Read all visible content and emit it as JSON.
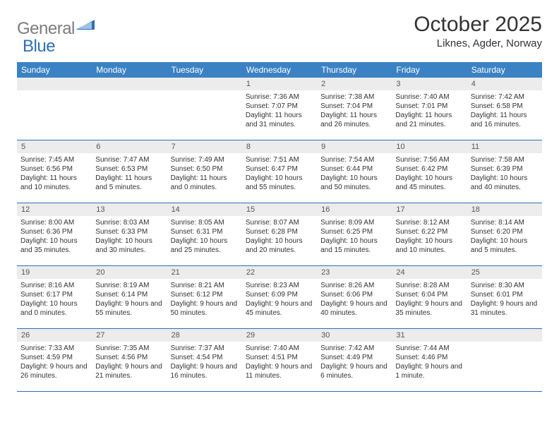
{
  "brand": {
    "part1": "General",
    "part2": "Blue"
  },
  "title": {
    "month": "October 2025",
    "location": "Liknes, Agder, Norway"
  },
  "colors": {
    "header_bg": "#3b82c4",
    "header_text": "#ffffff",
    "daynum_bg": "#ececec",
    "rule": "#2f6fb3",
    "brand_gray": "#7c7c7c",
    "brand_blue": "#2f6fb3"
  },
  "day_names": [
    "Sunday",
    "Monday",
    "Tuesday",
    "Wednesday",
    "Thursday",
    "Friday",
    "Saturday"
  ],
  "weeks": [
    [
      null,
      null,
      null,
      {
        "n": "1",
        "sr": "Sunrise: 7:36 AM",
        "ss": "Sunset: 7:07 PM",
        "dl": "Daylight: 11 hours and 31 minutes."
      },
      {
        "n": "2",
        "sr": "Sunrise: 7:38 AM",
        "ss": "Sunset: 7:04 PM",
        "dl": "Daylight: 11 hours and 26 minutes."
      },
      {
        "n": "3",
        "sr": "Sunrise: 7:40 AM",
        "ss": "Sunset: 7:01 PM",
        "dl": "Daylight: 11 hours and 21 minutes."
      },
      {
        "n": "4",
        "sr": "Sunrise: 7:42 AM",
        "ss": "Sunset: 6:58 PM",
        "dl": "Daylight: 11 hours and 16 minutes."
      }
    ],
    [
      {
        "n": "5",
        "sr": "Sunrise: 7:45 AM",
        "ss": "Sunset: 6:56 PM",
        "dl": "Daylight: 11 hours and 10 minutes."
      },
      {
        "n": "6",
        "sr": "Sunrise: 7:47 AM",
        "ss": "Sunset: 6:53 PM",
        "dl": "Daylight: 11 hours and 5 minutes."
      },
      {
        "n": "7",
        "sr": "Sunrise: 7:49 AM",
        "ss": "Sunset: 6:50 PM",
        "dl": "Daylight: 11 hours and 0 minutes."
      },
      {
        "n": "8",
        "sr": "Sunrise: 7:51 AM",
        "ss": "Sunset: 6:47 PM",
        "dl": "Daylight: 10 hours and 55 minutes."
      },
      {
        "n": "9",
        "sr": "Sunrise: 7:54 AM",
        "ss": "Sunset: 6:44 PM",
        "dl": "Daylight: 10 hours and 50 minutes."
      },
      {
        "n": "10",
        "sr": "Sunrise: 7:56 AM",
        "ss": "Sunset: 6:42 PM",
        "dl": "Daylight: 10 hours and 45 minutes."
      },
      {
        "n": "11",
        "sr": "Sunrise: 7:58 AM",
        "ss": "Sunset: 6:39 PM",
        "dl": "Daylight: 10 hours and 40 minutes."
      }
    ],
    [
      {
        "n": "12",
        "sr": "Sunrise: 8:00 AM",
        "ss": "Sunset: 6:36 PM",
        "dl": "Daylight: 10 hours and 35 minutes."
      },
      {
        "n": "13",
        "sr": "Sunrise: 8:03 AM",
        "ss": "Sunset: 6:33 PM",
        "dl": "Daylight: 10 hours and 30 minutes."
      },
      {
        "n": "14",
        "sr": "Sunrise: 8:05 AM",
        "ss": "Sunset: 6:31 PM",
        "dl": "Daylight: 10 hours and 25 minutes."
      },
      {
        "n": "15",
        "sr": "Sunrise: 8:07 AM",
        "ss": "Sunset: 6:28 PM",
        "dl": "Daylight: 10 hours and 20 minutes."
      },
      {
        "n": "16",
        "sr": "Sunrise: 8:09 AM",
        "ss": "Sunset: 6:25 PM",
        "dl": "Daylight: 10 hours and 15 minutes."
      },
      {
        "n": "17",
        "sr": "Sunrise: 8:12 AM",
        "ss": "Sunset: 6:22 PM",
        "dl": "Daylight: 10 hours and 10 minutes."
      },
      {
        "n": "18",
        "sr": "Sunrise: 8:14 AM",
        "ss": "Sunset: 6:20 PM",
        "dl": "Daylight: 10 hours and 5 minutes."
      }
    ],
    [
      {
        "n": "19",
        "sr": "Sunrise: 8:16 AM",
        "ss": "Sunset: 6:17 PM",
        "dl": "Daylight: 10 hours and 0 minutes."
      },
      {
        "n": "20",
        "sr": "Sunrise: 8:19 AM",
        "ss": "Sunset: 6:14 PM",
        "dl": "Daylight: 9 hours and 55 minutes."
      },
      {
        "n": "21",
        "sr": "Sunrise: 8:21 AM",
        "ss": "Sunset: 6:12 PM",
        "dl": "Daylight: 9 hours and 50 minutes."
      },
      {
        "n": "22",
        "sr": "Sunrise: 8:23 AM",
        "ss": "Sunset: 6:09 PM",
        "dl": "Daylight: 9 hours and 45 minutes."
      },
      {
        "n": "23",
        "sr": "Sunrise: 8:26 AM",
        "ss": "Sunset: 6:06 PM",
        "dl": "Daylight: 9 hours and 40 minutes."
      },
      {
        "n": "24",
        "sr": "Sunrise: 8:28 AM",
        "ss": "Sunset: 6:04 PM",
        "dl": "Daylight: 9 hours and 35 minutes."
      },
      {
        "n": "25",
        "sr": "Sunrise: 8:30 AM",
        "ss": "Sunset: 6:01 PM",
        "dl": "Daylight: 9 hours and 31 minutes."
      }
    ],
    [
      {
        "n": "26",
        "sr": "Sunrise: 7:33 AM",
        "ss": "Sunset: 4:59 PM",
        "dl": "Daylight: 9 hours and 26 minutes."
      },
      {
        "n": "27",
        "sr": "Sunrise: 7:35 AM",
        "ss": "Sunset: 4:56 PM",
        "dl": "Daylight: 9 hours and 21 minutes."
      },
      {
        "n": "28",
        "sr": "Sunrise: 7:37 AM",
        "ss": "Sunset: 4:54 PM",
        "dl": "Daylight: 9 hours and 16 minutes."
      },
      {
        "n": "29",
        "sr": "Sunrise: 7:40 AM",
        "ss": "Sunset: 4:51 PM",
        "dl": "Daylight: 9 hours and 11 minutes."
      },
      {
        "n": "30",
        "sr": "Sunrise: 7:42 AM",
        "ss": "Sunset: 4:49 PM",
        "dl": "Daylight: 9 hours and 6 minutes."
      },
      {
        "n": "31",
        "sr": "Sunrise: 7:44 AM",
        "ss": "Sunset: 4:46 PM",
        "dl": "Daylight: 9 hours and 1 minute."
      },
      null
    ]
  ]
}
